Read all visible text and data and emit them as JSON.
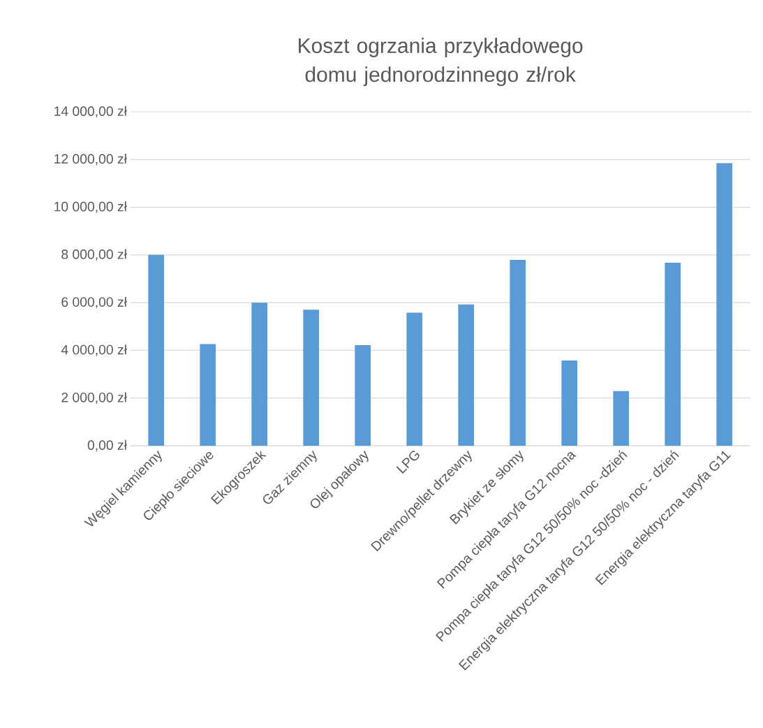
{
  "chart_data": {
    "type": "bar",
    "title": "Koszt ogrzania przykładowego domu jednorodzinnego zł/rok",
    "categories": [
      "Węgiel kamienny",
      "Ciepło sieciowe",
      "Ekogroszek",
      "Gaz ziemny",
      "Olej opałowy",
      "LPG",
      "Drewno/pellet drzewny",
      "Brykiet ze słomy",
      "Pompa ciepła taryfa G12 nocna",
      "Pompa ciepła taryfa G12 50/50% noc -dzień",
      "Energia elektryczna taryfa G12 50/50% noc - dzień",
      "Energia elektryczna taryfa G11"
    ],
    "values": [
      8000,
      4260,
      6000,
      5700,
      4220,
      5580,
      5920,
      7790,
      3570,
      2290,
      7670,
      11850
    ],
    "color": "#5b9bd5",
    "ylim": [
      0,
      14000
    ],
    "yticks": [
      {
        "value": 0,
        "label": "0,00 zł"
      },
      {
        "value": 2000,
        "label": "2 000,00 zł"
      },
      {
        "value": 4000,
        "label": "4 000,00 zł"
      },
      {
        "value": 6000,
        "label": "6 000,00 zł"
      },
      {
        "value": 8000,
        "label": "8 000,00 zł"
      },
      {
        "value": 10000,
        "label": "10 000,00 zł"
      },
      {
        "value": 12000,
        "label": "12 000,00 zł"
      },
      {
        "value": 14000,
        "label": "14 000,00 zł"
      }
    ],
    "grid": "y"
  }
}
